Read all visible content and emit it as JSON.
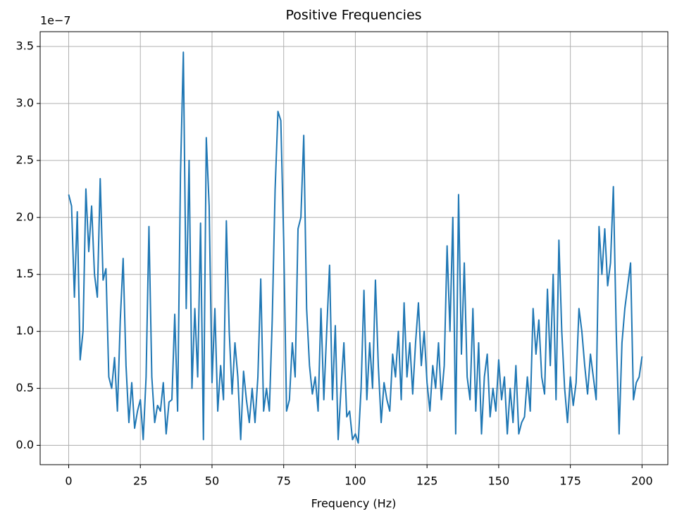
{
  "chart_data": {
    "type": "line",
    "title": "Positive Frequencies",
    "x_label": "Frequency (Hz)",
    "y_offset_label": "1e−7",
    "color": "#1f77b4",
    "grid": true,
    "xlim": [
      -9.95,
      209.0
    ],
    "ylim": [
      -0.17,
      3.63
    ],
    "xticks": [
      0,
      25,
      50,
      75,
      100,
      125,
      150,
      175,
      200
    ],
    "yticks": [
      {
        "value": 0,
        "label": "0.0"
      },
      0.5,
      {
        "value": 1,
        "label": "1.0"
      },
      1.5,
      {
        "value": 2,
        "label": "2.0"
      },
      2.5,
      {
        "value": 3,
        "label": "3.0"
      },
      3.5
    ],
    "x": [
      0,
      1,
      2,
      3,
      4,
      5,
      6,
      7,
      8,
      9,
      10,
      11,
      12,
      13,
      14,
      15,
      16,
      17,
      18,
      19,
      20,
      21,
      22,
      23,
      24,
      25,
      26,
      27,
      28,
      29,
      30,
      31,
      32,
      33,
      34,
      35,
      36,
      37,
      38,
      39,
      40,
      41,
      42,
      43,
      44,
      45,
      46,
      47,
      48,
      49,
      50,
      51,
      52,
      53,
      54,
      55,
      56,
      57,
      58,
      59,
      60,
      61,
      62,
      63,
      64,
      65,
      66,
      67,
      68,
      69,
      70,
      71,
      72,
      73,
      74,
      75,
      76,
      77,
      78,
      79,
      80,
      81,
      82,
      83,
      84,
      85,
      86,
      87,
      88,
      89,
      90,
      91,
      92,
      93,
      94,
      95,
      96,
      97,
      98,
      99,
      100,
      101,
      102,
      103,
      104,
      105,
      106,
      107,
      108,
      109,
      110,
      111,
      112,
      113,
      114,
      115,
      116,
      117,
      118,
      119,
      120,
      121,
      122,
      123,
      124,
      125,
      126,
      127,
      128,
      129,
      130,
      131,
      132,
      133,
      134,
      135,
      136,
      137,
      138,
      139,
      140,
      141,
      142,
      143,
      144,
      145,
      146,
      147,
      148,
      149,
      150,
      151,
      152,
      153,
      154,
      155,
      156,
      157,
      158,
      159,
      160,
      161,
      162,
      163,
      164,
      165,
      166,
      167,
      168,
      169,
      170,
      171,
      172,
      173,
      174,
      175,
      176,
      177,
      178,
      179,
      180,
      181,
      182,
      183,
      184,
      185,
      186,
      187,
      188,
      189,
      190,
      191,
      192,
      193,
      194,
      195,
      196,
      197,
      198,
      199,
      200
    ],
    "values": [
      2.2,
      2.1,
      1.3,
      2.05,
      0.75,
      1.0,
      2.25,
      1.7,
      2.1,
      1.5,
      1.3,
      2.34,
      1.45,
      1.55,
      0.6,
      0.5,
      0.77,
      0.3,
      1.1,
      1.64,
      0.7,
      0.2,
      0.55,
      0.15,
      0.3,
      0.4,
      0.05,
      0.6,
      1.92,
      0.6,
      0.2,
      0.35,
      0.3,
      0.55,
      0.1,
      0.38,
      0.4,
      1.15,
      0.3,
      2.38,
      3.45,
      1.2,
      2.5,
      0.5,
      1.2,
      0.6,
      1.95,
      0.05,
      2.7,
      2.1,
      0.55,
      1.2,
      0.3,
      0.7,
      0.4,
      1.97,
      1.0,
      0.45,
      0.9,
      0.6,
      0.05,
      0.65,
      0.4,
      0.2,
      0.5,
      0.2,
      0.6,
      1.46,
      0.3,
      0.5,
      0.3,
      1.1,
      2.24,
      2.93,
      2.85,
      1.8,
      0.3,
      0.4,
      0.9,
      0.6,
      1.9,
      2.0,
      2.72,
      1.2,
      0.7,
      0.45,
      0.6,
      0.3,
      1.2,
      0.4,
      1.0,
      1.58,
      0.4,
      1.05,
      0.05,
      0.5,
      0.9,
      0.25,
      0.3,
      0.05,
      0.1,
      0.02,
      0.5,
      1.36,
      0.4,
      0.9,
      0.5,
      1.45,
      0.7,
      0.2,
      0.55,
      0.4,
      0.3,
      0.8,
      0.6,
      1.0,
      0.4,
      1.25,
      0.6,
      0.9,
      0.45,
      0.9,
      1.25,
      0.7,
      1.0,
      0.55,
      0.3,
      0.7,
      0.5,
      0.9,
      0.4,
      0.7,
      1.75,
      1.0,
      2.0,
      0.1,
      2.2,
      0.8,
      1.6,
      0.6,
      0.4,
      1.2,
      0.3,
      0.9,
      0.1,
      0.6,
      0.8,
      0.25,
      0.5,
      0.3,
      0.75,
      0.4,
      0.6,
      0.1,
      0.5,
      0.2,
      0.7,
      0.1,
      0.2,
      0.25,
      0.6,
      0.3,
      1.2,
      0.8,
      1.1,
      0.6,
      0.45,
      1.37,
      0.7,
      1.5,
      0.4,
      1.8,
      1.0,
      0.5,
      0.2,
      0.6,
      0.35,
      0.55,
      1.2,
      1.0,
      0.7,
      0.45,
      0.8,
      0.6,
      0.4,
      1.92,
      1.5,
      1.9,
      1.4,
      1.6,
      2.27,
      1.0,
      0.1,
      0.9,
      1.2,
      1.4,
      1.6,
      0.4,
      0.55,
      0.6,
      0.78
    ]
  }
}
